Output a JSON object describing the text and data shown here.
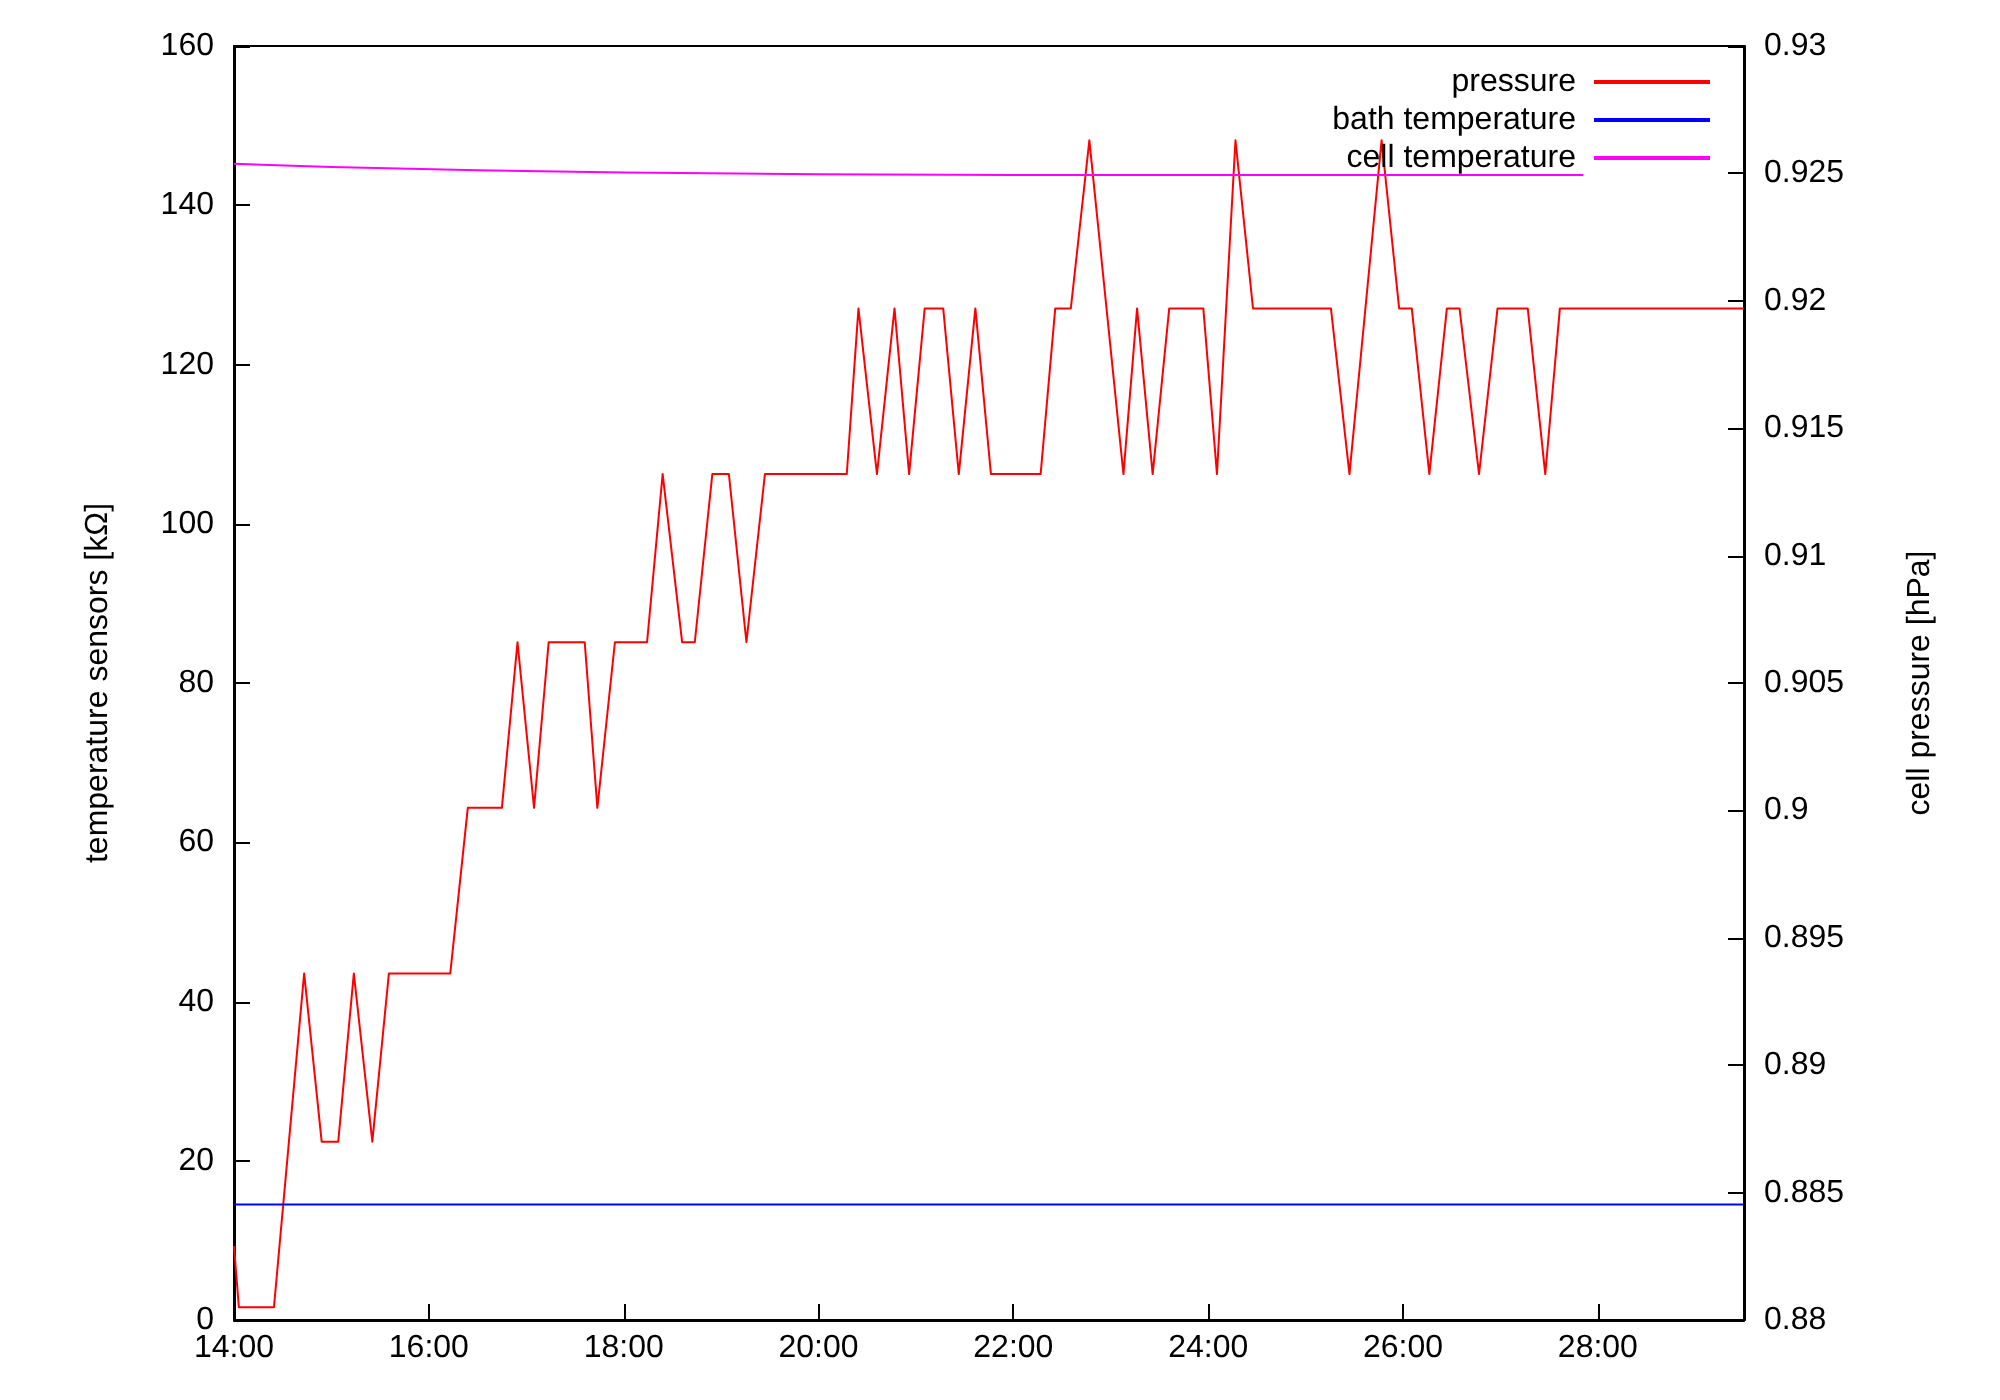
{
  "chart_data": {
    "type": "line",
    "xlabel": null,
    "ylabel": "temperature sensors [kΩ]",
    "y2label": "cell pressure [hPa]",
    "xlim": [
      14,
      29.5
    ],
    "xticks": [
      {
        "value": 14,
        "label": "14:00"
      },
      {
        "value": 16,
        "label": "16:00"
      },
      {
        "value": 18,
        "label": "18:00"
      },
      {
        "value": 20,
        "label": "20:00"
      },
      {
        "value": 22,
        "label": "22:00"
      },
      {
        "value": 24,
        "label": "24:00"
      },
      {
        "value": 26,
        "label": "26:00"
      },
      {
        "value": 28,
        "label": "28:00"
      }
    ],
    "ylim": [
      0,
      160
    ],
    "yticks": [
      0,
      20,
      40,
      60,
      80,
      100,
      120,
      140,
      160
    ],
    "y2lim": [
      0.88,
      0.93
    ],
    "y2ticks": [
      0.88,
      0.885,
      0.89,
      0.895,
      0.9,
      0.905,
      0.91,
      0.915,
      0.92,
      0.925,
      0.93
    ],
    "grid": false,
    "legend": "top right",
    "marker": "none",
    "line_style": "solid",
    "series": [
      {
        "name": "pressure",
        "color": "#ff0000",
        "axis": "y2",
        "x": [
          14.0,
          14.05,
          14.41,
          14.72,
          14.9,
          15.07,
          15.23,
          15.42,
          15.59,
          16.22,
          16.4,
          16.75,
          16.91,
          17.08,
          17.23,
          17.6,
          17.73,
          17.91,
          18.24,
          18.4,
          18.6,
          18.73,
          18.91,
          19.08,
          19.26,
          19.45,
          20.29,
          20.41,
          20.6,
          20.78,
          20.93,
          21.09,
          21.28,
          21.44,
          21.61,
          21.77,
          22.28,
          22.43,
          22.59,
          22.78,
          23.13,
          23.27,
          23.43,
          23.6,
          23.95,
          24.09,
          24.28,
          24.46,
          25.26,
          25.45,
          25.78,
          25.96,
          26.09,
          26.27,
          26.45,
          26.58,
          26.78,
          26.97,
          27.28,
          27.46,
          27.61,
          29.5
        ],
        "values": [
          0.8829,
          0.8805,
          0.8805,
          0.8936,
          0.887,
          0.887,
          0.8936,
          0.887,
          0.8936,
          0.8936,
          0.9001,
          0.9001,
          0.9066,
          0.9001,
          0.9066,
          0.9066,
          0.9001,
          0.9066,
          0.9066,
          0.9132,
          0.9066,
          0.9066,
          0.9132,
          0.9132,
          0.9066,
          0.9132,
          0.9132,
          0.9197,
          0.9132,
          0.9197,
          0.9132,
          0.9197,
          0.9197,
          0.9132,
          0.9197,
          0.9132,
          0.9132,
          0.9197,
          0.9197,
          0.9263,
          0.9132,
          0.9197,
          0.9132,
          0.9197,
          0.9197,
          0.9132,
          0.9263,
          0.9197,
          0.9197,
          0.9132,
          0.9263,
          0.9197,
          0.9197,
          0.9132,
          0.9197,
          0.9197,
          0.9132,
          0.9197,
          0.9197,
          0.9132,
          0.9197,
          0.9197
        ]
      },
      {
        "name": "bath temperature",
        "color": "#0000ff",
        "x": [
          14.0,
          29.5
        ],
        "values": [
          14.5,
          14.5
        ]
      },
      {
        "name": "cell temperature",
        "color": "#ff00ff",
        "x": [
          14.0,
          15.0,
          16.5,
          18.0,
          20.0,
          22.0,
          27.85
        ],
        "values": [
          145.2,
          144.8,
          144.4,
          144.1,
          143.9,
          143.8,
          143.8
        ]
      }
    ]
  }
}
